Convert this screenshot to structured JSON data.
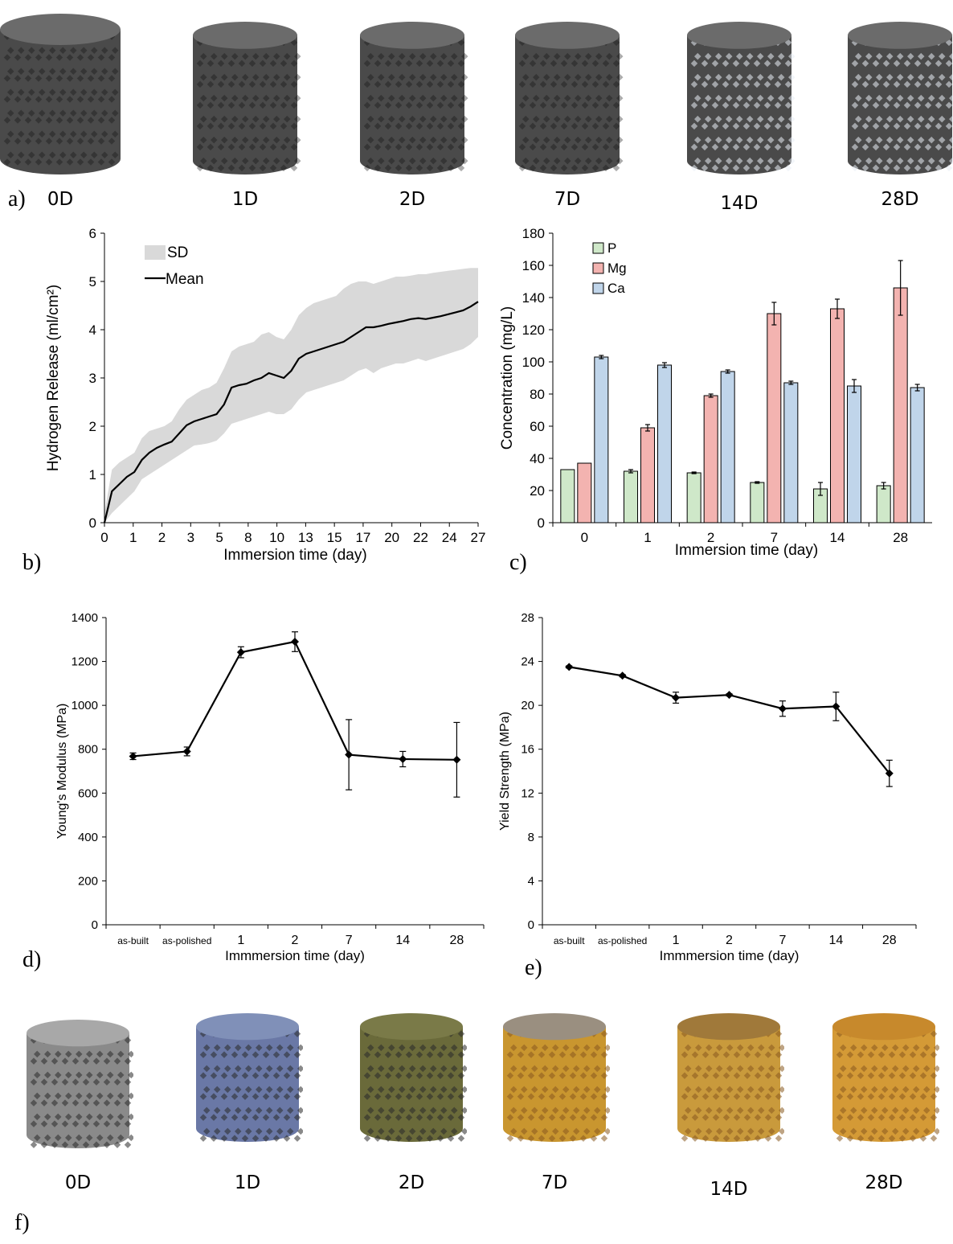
{
  "panels": {
    "a": "a)",
    "b": "b)",
    "c": "c)",
    "d": "d)",
    "e": "e)",
    "f": "f)"
  },
  "samples_top": [
    "0D",
    "1D",
    "2D",
    "7D",
    "14D",
    "28D"
  ],
  "samples_bottom": [
    "0D",
    "1D",
    "2D",
    "7D",
    "14D",
    "28D"
  ],
  "colors": {
    "sd_band": "#d9d9d9",
    "line": "#000000",
    "P": "#cfe8c9",
    "Mg": "#f3b3b0",
    "Ca": "#c0d5ea",
    "scaffold_top": "#555555",
    "scaffold_bottom_0D": "#8a8a8a",
    "scaffold_bottom_1D": "#6a78a6",
    "scaffold_bottom_2D": "#6a6a3a",
    "scaffold_bottom_rust": "#c9962f"
  },
  "chart_data": [
    {
      "type": "line",
      "panel": "b",
      "xlabel": "Immersion time (day)",
      "ylabel": "Hydrogen Release (ml/cm²)",
      "ylim": [
        0,
        6
      ],
      "yticks": [
        "0",
        "1",
        "2",
        "3",
        "4",
        "5",
        "6"
      ],
      "xtick_labels": [
        "0",
        "1",
        "2",
        "3",
        "5",
        "8",
        "10",
        "13",
        "15",
        "17",
        "20",
        "22",
        "24",
        "27"
      ],
      "legend": [
        "SD",
        "Mean"
      ],
      "legend_position": "top-left",
      "series": [
        {
          "name": "Mean",
          "x": [
            0,
            0.2,
            0.4,
            0.6,
            0.8,
            1,
            1.2,
            1.4,
            1.6,
            1.8,
            2,
            2.2,
            2.4,
            2.6,
            2.8,
            3,
            3.2,
            3.4,
            3.6,
            3.8,
            4,
            4.2,
            4.4,
            4.6,
            4.8,
            5,
            5.2,
            5.4,
            5.6,
            5.8,
            6,
            6.2,
            6.4,
            6.6,
            6.8,
            7,
            7.2,
            7.4,
            7.6,
            7.8,
            8,
            8.2,
            8.4,
            8.6,
            8.8,
            9,
            9.2,
            9.4,
            9.6,
            9.8,
            10
          ],
          "values": [
            0,
            0.65,
            0.8,
            0.95,
            1.05,
            1.3,
            1.45,
            1.55,
            1.62,
            1.68,
            1.85,
            2.02,
            2.1,
            2.15,
            2.2,
            2.25,
            2.45,
            2.8,
            2.85,
            2.88,
            2.95,
            3.0,
            3.1,
            3.05,
            3.0,
            3.15,
            3.4,
            3.5,
            3.55,
            3.6,
            3.65,
            3.7,
            3.75,
            3.85,
            3.95,
            4.05,
            4.05,
            4.08,
            4.12,
            4.15,
            4.18,
            4.22,
            4.24,
            4.22,
            4.25,
            4.28,
            4.32,
            4.36,
            4.4,
            4.48,
            4.58
          ]
        },
        {
          "name": "SD",
          "upper": [
            0.2,
            1.1,
            1.25,
            1.35,
            1.45,
            1.75,
            1.9,
            1.95,
            2.0,
            2.1,
            2.35,
            2.55,
            2.65,
            2.75,
            2.8,
            2.9,
            3.2,
            3.55,
            3.65,
            3.7,
            3.75,
            3.9,
            3.95,
            3.85,
            3.8,
            4.0,
            4.3,
            4.45,
            4.55,
            4.6,
            4.65,
            4.7,
            4.85,
            4.95,
            5.0,
            5.0,
            4.95,
            5.0,
            5.05,
            5.1,
            5.1,
            5.12,
            5.15,
            5.15,
            5.18,
            5.2,
            5.22,
            5.24,
            5.26,
            5.28,
            5.28
          ],
          "lower": [
            0,
            0.2,
            0.35,
            0.5,
            0.65,
            0.9,
            1.0,
            1.1,
            1.2,
            1.3,
            1.4,
            1.5,
            1.6,
            1.62,
            1.65,
            1.7,
            1.85,
            2.05,
            2.1,
            2.15,
            2.2,
            2.25,
            2.3,
            2.25,
            2.25,
            2.35,
            2.55,
            2.7,
            2.75,
            2.8,
            2.85,
            2.9,
            2.95,
            3.05,
            3.15,
            3.2,
            3.1,
            3.2,
            3.25,
            3.3,
            3.3,
            3.35,
            3.4,
            3.35,
            3.4,
            3.45,
            3.5,
            3.55,
            3.6,
            3.7,
            3.85
          ]
        }
      ]
    },
    {
      "type": "bar",
      "panel": "c",
      "xlabel": "Immersion time (day)",
      "ylabel": "Concentration (mg/L)",
      "ylim": [
        0,
        180
      ],
      "yticks": [
        "0",
        "20",
        "40",
        "60",
        "80",
        "100",
        "120",
        "140",
        "160",
        "180"
      ],
      "categories": [
        "0",
        "1",
        "2",
        "7",
        "14",
        "28"
      ],
      "legend_position": "top-left",
      "series": [
        {
          "name": "P",
          "values": [
            33,
            32,
            31,
            25,
            21,
            23
          ],
          "errors": [
            0,
            1,
            0.5,
            0.5,
            4,
            2
          ]
        },
        {
          "name": "Mg",
          "values": [
            37,
            59,
            79,
            130,
            133,
            146
          ],
          "errors": [
            0,
            2,
            1,
            7,
            6,
            17
          ]
        },
        {
          "name": "Ca",
          "values": [
            103,
            98,
            94,
            87,
            85,
            84
          ],
          "errors": [
            1,
            1.5,
            1,
            1,
            4,
            2
          ]
        }
      ]
    },
    {
      "type": "line",
      "panel": "d",
      "xlabel": "Immmersion time (day)",
      "ylabel": "Young's Modulus (MPa)",
      "ylim": [
        0,
        1400
      ],
      "yticks": [
        "0",
        "200",
        "400",
        "600",
        "800",
        "1000",
        "1200",
        "1400"
      ],
      "categories": [
        "as-built",
        "as-polished",
        "1",
        "2",
        "7",
        "14",
        "28"
      ],
      "series": [
        {
          "values": [
            768,
            790,
            1242,
            1290,
            775,
            755,
            752
          ],
          "errors": [
            15,
            20,
            25,
            45,
            160,
            35,
            170
          ]
        }
      ]
    },
    {
      "type": "line",
      "panel": "e",
      "xlabel": "Immmersion time (day)",
      "ylabel": "Yield Strength (MPa)",
      "ylim": [
        0,
        28
      ],
      "yticks": [
        "0",
        "4",
        "8",
        "12",
        "16",
        "20",
        "24",
        "28"
      ],
      "categories": [
        "as-built",
        "as-polished",
        "1",
        "2",
        "7",
        "14",
        "28"
      ],
      "series": [
        {
          "values": [
            23.5,
            22.7,
            20.7,
            20.95,
            19.7,
            19.9,
            13.8
          ],
          "errors": [
            0.1,
            0.1,
            0.5,
            0.1,
            0.7,
            1.3,
            1.2
          ]
        }
      ]
    }
  ]
}
